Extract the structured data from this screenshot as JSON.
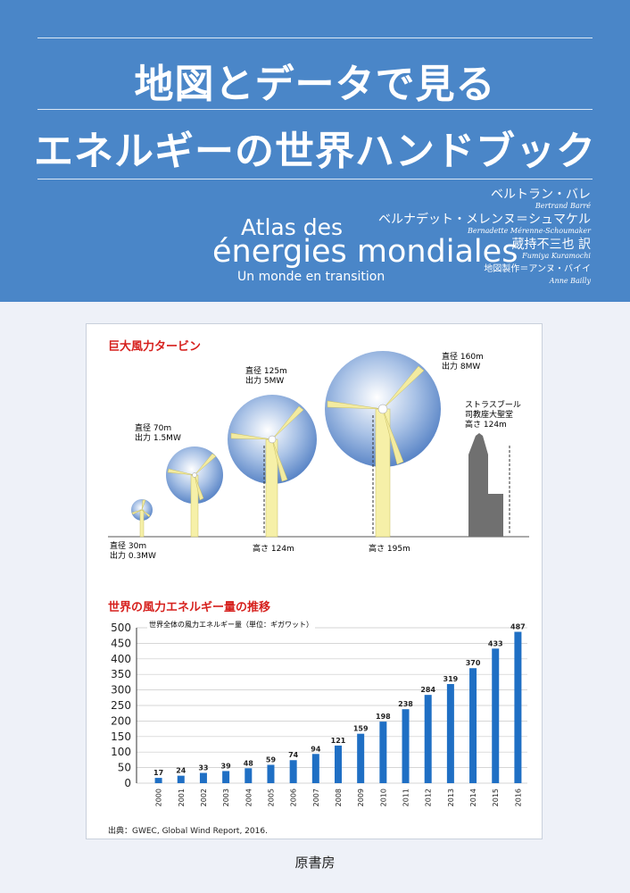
{
  "header": {
    "title_line1": "地図とデータで見る",
    "title_line2": "エネルギーの世界ハンドブック",
    "atlas_line1": "Atlas des",
    "atlas_line2": "énergies mondiales",
    "atlas_line3": "Un monde en transition",
    "authors": [
      {
        "jp": "ベルトラン・バレ",
        "en": "Bertrand Barré"
      },
      {
        "jp": "ベルナデット・メレンヌ＝シュマケル",
        "en": "Bernadette Mérenne-Schoumaker"
      },
      {
        "jp": "蔵持不三也 訳",
        "en": "Fumiya Kuramochi"
      },
      {
        "jp": "地図製作＝アンヌ・バイイ",
        "en": "Anne Bailly"
      }
    ]
  },
  "turbines": {
    "section_title": "巨大風力タービン",
    "t1_diameter": "直径 30m",
    "t1_output": "出力 0.3MW",
    "t2_diameter": "直径 70m",
    "t2_output": "出力 1.5MW",
    "t3_diameter": "直径 125m",
    "t3_output": "出力 5MW",
    "t3_height": "高さ 124m",
    "t4_diameter": "直径 160m",
    "t4_output": "出力 8MW",
    "t4_height": "高さ 195m",
    "cathedral_l1": "ストラスブール",
    "cathedral_l2": "司教座大聖堂",
    "cathedral_l3": "高さ 124m"
  },
  "chart": {
    "section_title": "世界の風力エネルギー量の推移",
    "source": "出典：GWEC, Global Wind Report, 2016."
  },
  "chart_data": {
    "type": "bar",
    "title": "世界全体の風力エネルギー量（単位：ギガワット）",
    "categories": [
      "2000",
      "2001",
      "2002",
      "2003",
      "2004",
      "2005",
      "2006",
      "2007",
      "2008",
      "2009",
      "2010",
      "2011",
      "2012",
      "2013",
      "2014",
      "2015",
      "2016"
    ],
    "values": [
      17,
      24,
      33,
      39,
      48,
      59,
      74,
      94,
      121,
      159,
      198,
      238,
      284,
      319,
      370,
      433,
      487
    ],
    "ylim": [
      0,
      500
    ],
    "yticks": [
      "0",
      "50",
      "100",
      "150",
      "200",
      "250",
      "300",
      "350",
      "400",
      "450",
      "500"
    ],
    "grid": true,
    "bar_color": "#1f6fc4"
  },
  "publisher": "原書房"
}
